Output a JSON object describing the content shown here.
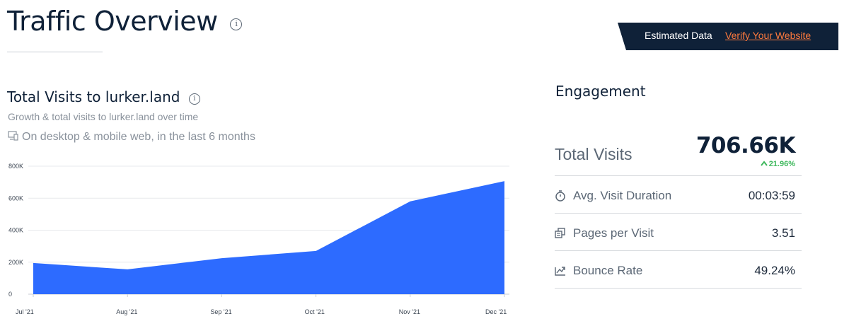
{
  "header": {
    "title": "Traffic Overview",
    "info_icon": "info-icon",
    "banner_text": "Estimated Data",
    "banner_link": "Verify Your Website"
  },
  "visits_card": {
    "title": "Total Visits to lurker.land",
    "subtitle": "Growth & total visits to lurker.land over time",
    "scope_note": "On desktop & mobile web, in the last 6 months",
    "scope_icon": "devices-icon"
  },
  "chart_data": {
    "type": "area",
    "categories": [
      "Jul '21",
      "Aug '21",
      "Sep '21",
      "Oct '21",
      "Nov '21",
      "Dec '21"
    ],
    "values": [
      195000,
      155000,
      225000,
      270000,
      580000,
      706660
    ],
    "ylim": [
      0,
      800000
    ],
    "yticks": [
      0,
      200000,
      400000,
      600000,
      800000
    ],
    "ytick_labels": [
      "0",
      "200K",
      "400K",
      "600K",
      "800K"
    ],
    "grid": true,
    "fill_color": "#2d6bff"
  },
  "engagement": {
    "title": "Engagement",
    "total_visits_label": "Total Visits",
    "total_visits_value": "706.66K",
    "total_visits_change": "21.96%",
    "change_color": "#3eb85c",
    "metrics": [
      {
        "icon": "stopwatch-icon",
        "label": "Avg. Visit Duration",
        "value": "00:03:59"
      },
      {
        "icon": "pages-icon",
        "label": "Pages per Visit",
        "value": "3.51"
      },
      {
        "icon": "trend-icon",
        "label": "Bounce Rate",
        "value": "49.24%"
      }
    ]
  }
}
